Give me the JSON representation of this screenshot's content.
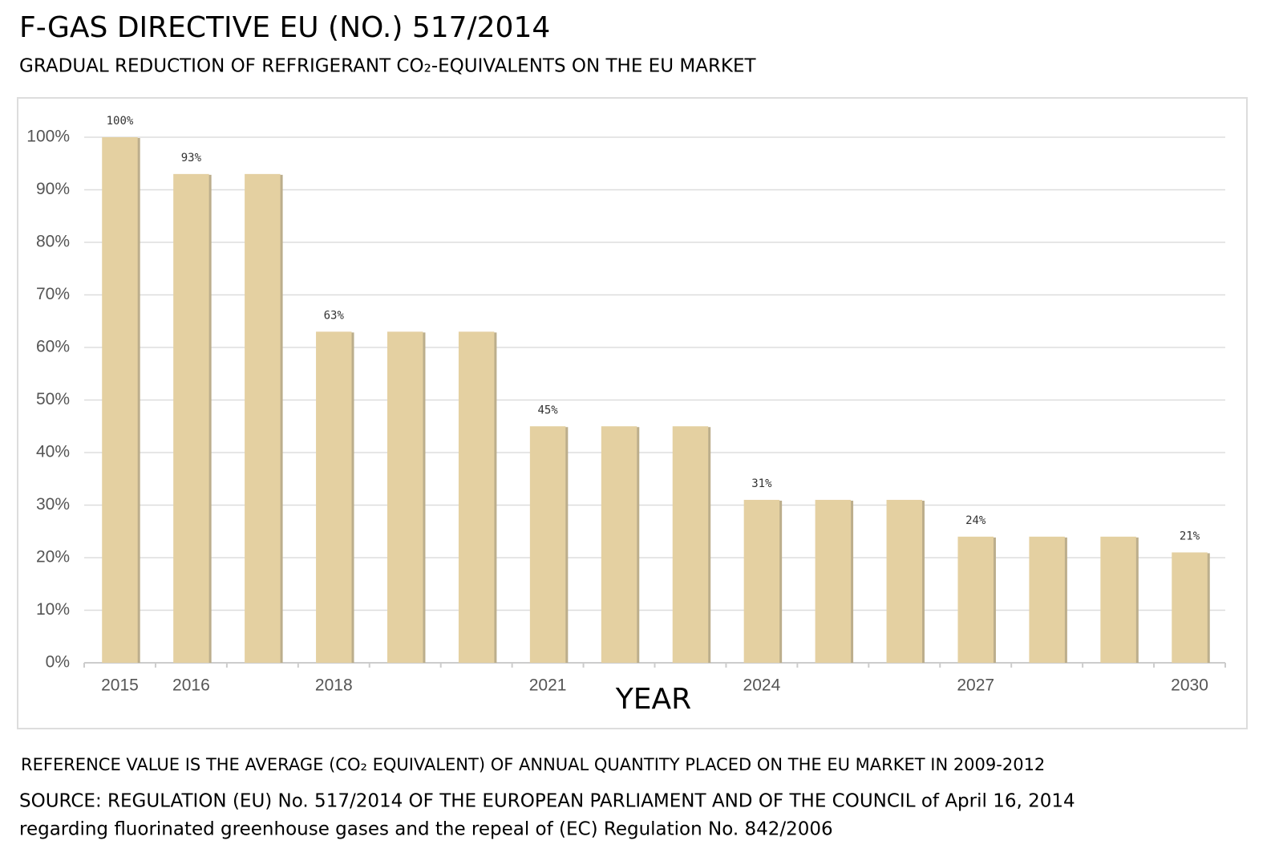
{
  "chart_data": {
    "type": "bar",
    "title": "F-GAS DIRECTIVE EU (NO.) 517/2014",
    "subtitle": "GRADUAL REDUCTION OF REFRIGERANT CO₂-EQUIVALENTS ON THE EU MARKET",
    "x_label": "YEAR",
    "categories": [
      "2015",
      "2016",
      null,
      "2018",
      null,
      null,
      "2021",
      null,
      null,
      "2024",
      null,
      null,
      "2027",
      null,
      null,
      "2030"
    ],
    "values": [
      100,
      93,
      93,
      63,
      63,
      63,
      45,
      45,
      45,
      31,
      31,
      31,
      24,
      24,
      24,
      21
    ],
    "value_labels": [
      "100%",
      "93%",
      null,
      "63%",
      null,
      null,
      "45%",
      null,
      null,
      "31%",
      null,
      null,
      "24%",
      null,
      null,
      "21%"
    ],
    "color": "#e4d0a1",
    "ylim": [
      0,
      100
    ],
    "yticks": [
      {
        "value": 0,
        "label": "0%"
      },
      {
        "value": 10,
        "label": "10%"
      },
      {
        "value": 20,
        "label": "20%"
      },
      {
        "value": 30,
        "label": "30%"
      },
      {
        "value": 40,
        "label": "40%"
      },
      {
        "value": 50,
        "label": "50%"
      },
      {
        "value": 60,
        "label": "60%"
      },
      {
        "value": 70,
        "label": "70%"
      },
      {
        "value": 80,
        "label": "80%"
      },
      {
        "value": 90,
        "label": "90%"
      },
      {
        "value": 100,
        "label": "100%"
      }
    ],
    "grid": true,
    "note": "REFERENCE VALUE IS THE AVERAGE (CO₂ EQUIVALENT) OF ANNUAL QUANTITY PLACED ON THE EU MARKET IN 2009-2012",
    "source": [
      "SOURCE: REGULATION (EU) No. 517/2014 OF THE EUROPEAN PARLIAMENT AND OF THE COUNCIL of April 16, 2014",
      "regarding fluorinated greenhouse gases and the repeal of (EC) Regulation No. 842/2006"
    ]
  }
}
